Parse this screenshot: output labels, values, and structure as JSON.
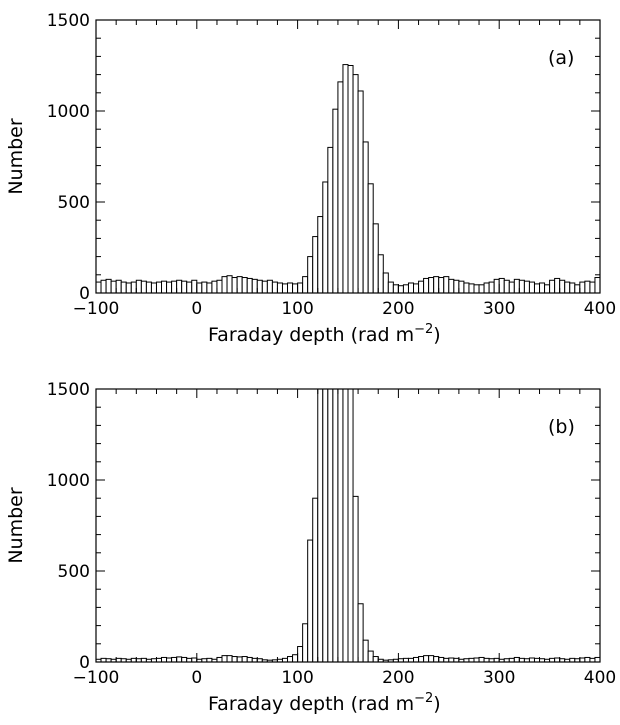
{
  "chart_data": [
    {
      "type": "bar",
      "panel_label": "(a)",
      "xlabel": "Faraday depth (rad m",
      "xlabel_exponent": "−2",
      "xlabel_close": ")",
      "ylabel": "Number",
      "xlim": [
        -100,
        400
      ],
      "ylim": [
        0,
        1500
      ],
      "xticks": [
        -100,
        0,
        100,
        200,
        300,
        400
      ],
      "xtick_labels": [
        "−100",
        "0",
        "100",
        "200",
        "300",
        "400"
      ],
      "yticks": [
        0,
        500,
        1000,
        1500
      ],
      "ytick_labels": [
        "0",
        "500",
        "1000",
        "1500"
      ],
      "bin_width": 5,
      "bin_start": -100,
      "values": [
        60,
        70,
        75,
        65,
        70,
        60,
        55,
        60,
        70,
        65,
        60,
        55,
        60,
        65,
        60,
        65,
        70,
        65,
        60,
        70,
        55,
        60,
        55,
        65,
        70,
        90,
        95,
        85,
        90,
        85,
        80,
        75,
        70,
        65,
        70,
        60,
        55,
        50,
        55,
        50,
        55,
        90,
        200,
        310,
        420,
        610,
        800,
        1010,
        1160,
        1255,
        1250,
        1200,
        1110,
        830,
        600,
        380,
        210,
        110,
        60,
        45,
        40,
        45,
        55,
        50,
        65,
        80,
        85,
        90,
        85,
        90,
        75,
        70,
        65,
        55,
        50,
        45,
        45,
        55,
        60,
        75,
        80,
        70,
        60,
        75,
        70,
        65,
        60,
        50,
        55,
        45,
        70,
        80,
        70,
        60,
        55,
        45,
        60,
        65,
        60,
        85
      ]
    },
    {
      "type": "bar",
      "panel_label": "(b)",
      "xlabel": "Faraday depth (rad m",
      "xlabel_exponent": "−2",
      "xlabel_close": ")",
      "ylabel": "Number",
      "xlim": [
        -100,
        400
      ],
      "ylim": [
        0,
        1500
      ],
      "xticks": [
        -100,
        0,
        100,
        200,
        300,
        400
      ],
      "xtick_labels": [
        "−100",
        "0",
        "100",
        "200",
        "300",
        "400"
      ],
      "yticks": [
        0,
        500,
        1000,
        1500
      ],
      "ytick_labels": [
        "0",
        "500",
        "1000",
        "1500"
      ],
      "bin_width": 5,
      "bin_start": -100,
      "values": [
        15,
        20,
        18,
        15,
        20,
        18,
        15,
        20,
        18,
        20,
        15,
        18,
        20,
        25,
        22,
        25,
        28,
        25,
        20,
        22,
        15,
        18,
        20,
        15,
        25,
        35,
        35,
        30,
        28,
        30,
        25,
        20,
        18,
        12,
        10,
        12,
        15,
        20,
        30,
        40,
        85,
        210,
        670,
        900,
        1500,
        1500,
        1500,
        1500,
        1500,
        1500,
        1500,
        910,
        320,
        120,
        60,
        30,
        15,
        10,
        12,
        15,
        18,
        20,
        20,
        25,
        30,
        35,
        35,
        30,
        25,
        20,
        22,
        20,
        15,
        18,
        20,
        22,
        25,
        20,
        18,
        20,
        15,
        18,
        20,
        25,
        20,
        18,
        22,
        20,
        18,
        15,
        20,
        22,
        18,
        15,
        20,
        18,
        22,
        25,
        20,
        25
      ]
    }
  ]
}
